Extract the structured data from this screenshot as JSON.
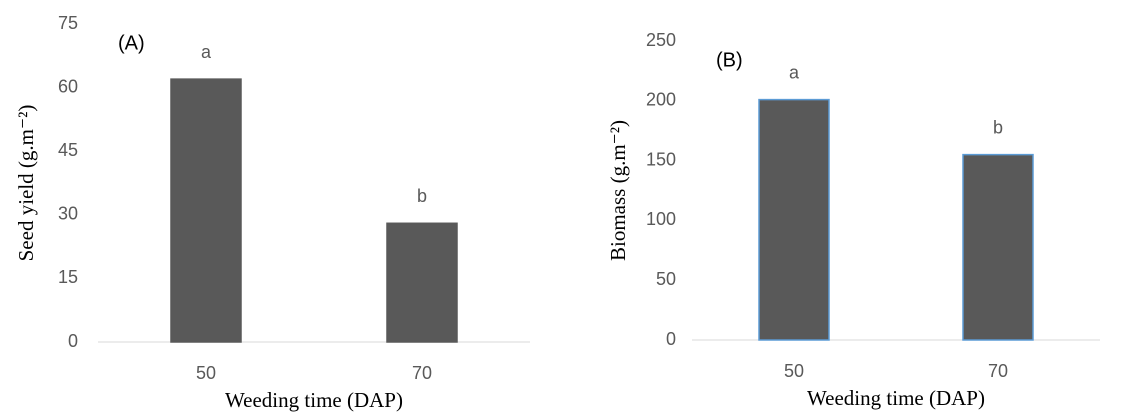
{
  "chart_data": [
    {
      "type": "bar",
      "panel_label": "(A)",
      "y_label": "Seed yield (g.m⁻²)",
      "x_label": "Weeding time (DAP)",
      "categories": [
        "50",
        "70"
      ],
      "values": [
        62,
        28
      ],
      "bar_labels": [
        "a",
        "b"
      ],
      "color": "#595959",
      "edge_color": "#595959",
      "ylim": [
        0,
        75
      ],
      "yticks": [
        0,
        15,
        30,
        45,
        60,
        75
      ]
    },
    {
      "type": "bar",
      "panel_label": "(B)",
      "y_label": "Biomass (g.m⁻²)",
      "x_label": "Weeding time (DAP)",
      "categories": [
        "50",
        "70"
      ],
      "values": [
        201,
        155
      ],
      "bar_labels": [
        "a",
        "b"
      ],
      "color": "#595959",
      "edge_color": "#5b9bd5",
      "ylim": [
        0,
        250
      ],
      "yticks": [
        0,
        50,
        100,
        150,
        200,
        250
      ]
    }
  ]
}
